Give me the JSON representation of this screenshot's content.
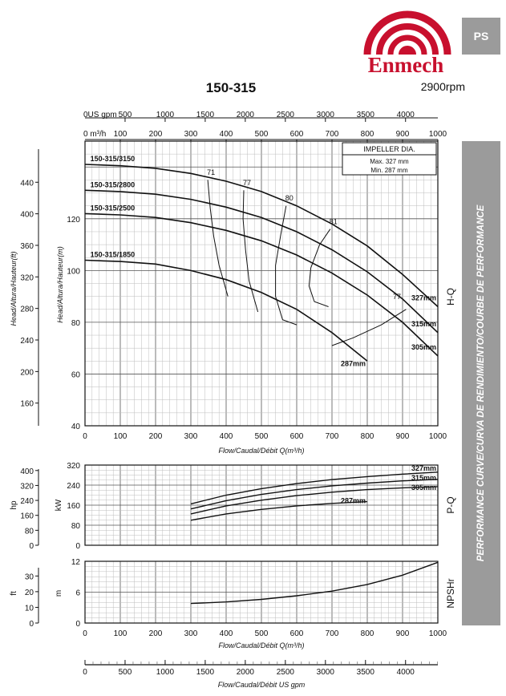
{
  "brand": {
    "name": "Enmech",
    "color": "#c8102e"
  },
  "tab": "PS",
  "side_label": "PERFORMANCE CURVE/CURVA DE RENDIMIENTO/COURBE DE PERFORMANCE",
  "model": "150-315",
  "rpm": "2900rpm",
  "chart_data": [
    {
      "type": "line",
      "id": "hq",
      "panel_label": "H-Q",
      "xlabel": "Flow/Caudal/Débit Q(m³/h)",
      "ylabel": "Head/Altura/Hauteur(m)",
      "ylabel2": "Head/Altura/Hauteur(ft)",
      "xlim": [
        0,
        1000
      ],
      "ylim": [
        40,
        150
      ],
      "x_ticks": [
        0,
        100,
        200,
        300,
        400,
        500,
        600,
        700,
        800,
        900,
        1000
      ],
      "y_ticks": [
        40,
        60,
        80,
        100,
        120
      ],
      "y2_ticks": [
        160,
        200,
        240,
        280,
        320,
        360,
        400,
        440
      ],
      "top_axis_m3h_label": "0 m³/h",
      "top_axis_gpm_label": "0US gpm",
      "top_axis_gpm_ticks": [
        500,
        1000,
        1500,
        2000,
        2500,
        3000,
        3500,
        4000
      ],
      "impeller_box": {
        "title": "IMPELLER DIA.",
        "max": "Max.  327  mm",
        "min": "Min.   287  mm"
      },
      "series": [
        {
          "name": "327mm",
          "model_label": "150-315/3150",
          "x": [
            0,
            100,
            200,
            300,
            400,
            500,
            600,
            700,
            800,
            900,
            1000
          ],
          "y": [
            141,
            140.5,
            139.5,
            137.5,
            134.5,
            130.5,
            125,
            118,
            109.5,
            98.5,
            86
          ]
        },
        {
          "name": "315mm",
          "model_label": "150-315/2800",
          "x": [
            0,
            100,
            200,
            300,
            400,
            500,
            600,
            700,
            800,
            900,
            1000
          ],
          "y": [
            131,
            130.5,
            129.5,
            127.5,
            124.5,
            120.5,
            115,
            108,
            99.5,
            89,
            76
          ]
        },
        {
          "name": "305mm",
          "model_label": "150-315/2500",
          "x": [
            0,
            100,
            200,
            300,
            400,
            500,
            600,
            700,
            800,
            900,
            1000
          ],
          "y": [
            122,
            121.5,
            120.5,
            118.5,
            115.5,
            111.5,
            106,
            99,
            90.5,
            80,
            67
          ]
        },
        {
          "name": "287mm",
          "model_label": "150-315/1850",
          "x": [
            0,
            100,
            200,
            300,
            400,
            500,
            600,
            700,
            800
          ],
          "y": [
            104,
            103.5,
            102.5,
            100,
            96.5,
            91.5,
            85,
            76,
            65
          ]
        }
      ],
      "efficiency": [
        {
          "label": "71",
          "x": [
            348,
            355,
            365,
            380,
            405
          ],
          "y": [
            135,
            124,
            113,
            102,
            90
          ]
        },
        {
          "label": "77",
          "x": [
            450,
            448,
            455,
            465,
            490
          ],
          "y": [
            131,
            120,
            108,
            96,
            84
          ]
        },
        {
          "label": "80",
          "x": [
            570,
            555,
            540,
            540,
            560,
            600
          ],
          "y": [
            125,
            114,
            102,
            90,
            81,
            79
          ]
        },
        {
          "label": "81",
          "x": [
            695,
            665,
            640,
            635,
            650,
            690
          ],
          "y": [
            116,
            110,
            101,
            94,
            88,
            86
          ]
        },
        {
          "label": "77",
          "x": [
            700,
            760,
            840,
            910
          ],
          "y": [
            71,
            74,
            79,
            85
          ]
        }
      ]
    },
    {
      "type": "line",
      "id": "pq",
      "panel_label": "P-Q",
      "ylabel": "kW",
      "ylabel2": "hp",
      "xlim": [
        0,
        1000
      ],
      "ylim": [
        0,
        320
      ],
      "y_ticks": [
        0,
        80,
        160,
        240,
        320
      ],
      "y2_ticks": [
        0,
        80,
        160,
        240,
        320,
        400
      ],
      "series": [
        {
          "name": "327mm",
          "x": [
            300,
            400,
            500,
            600,
            700,
            800,
            900,
            1000
          ],
          "y": [
            165,
            200,
            226,
            246,
            262,
            274,
            284,
            292
          ]
        },
        {
          "name": "315mm",
          "x": [
            300,
            400,
            500,
            600,
            700,
            800,
            900,
            1000
          ],
          "y": [
            145,
            178,
            203,
            222,
            237,
            248,
            257,
            263
          ]
        },
        {
          "name": "305mm",
          "x": [
            300,
            400,
            500,
            600,
            700,
            800,
            900,
            1000
          ],
          "y": [
            125,
            157,
            180,
            198,
            212,
            222,
            229,
            234
          ]
        },
        {
          "name": "287mm",
          "x": [
            300,
            400,
            500,
            600,
            700,
            800
          ],
          "y": [
            100,
            125,
            143,
            157,
            167,
            174
          ]
        }
      ]
    },
    {
      "type": "line",
      "id": "npsh",
      "panel_label": "NPSHr",
      "xlabel": "Flow/Caudal/Débit Q(m³/h)",
      "ylabel": "m",
      "ylabel2": "ft",
      "xlim": [
        0,
        1000
      ],
      "ylim": [
        0,
        12
      ],
      "x_ticks": [
        0,
        100,
        200,
        300,
        400,
        500,
        600,
        700,
        800,
        900,
        1000
      ],
      "y_ticks": [
        0,
        6,
        12
      ],
      "y2_ticks": [
        0,
        10,
        20,
        30
      ],
      "series": [
        {
          "name": "NPSHr",
          "x": [
            300,
            400,
            500,
            600,
            700,
            800,
            900,
            1000
          ],
          "y": [
            3.8,
            4.1,
            4.6,
            5.3,
            6.2,
            7.5,
            9.3,
            11.8
          ]
        }
      ]
    },
    {
      "type": "axis",
      "id": "usgpm",
      "xlabel": "Flow/Caudal/Débit  US gpm",
      "x_ticks": [
        0,
        500,
        1000,
        1500,
        2000,
        2500,
        3000,
        3500,
        4000
      ]
    }
  ]
}
